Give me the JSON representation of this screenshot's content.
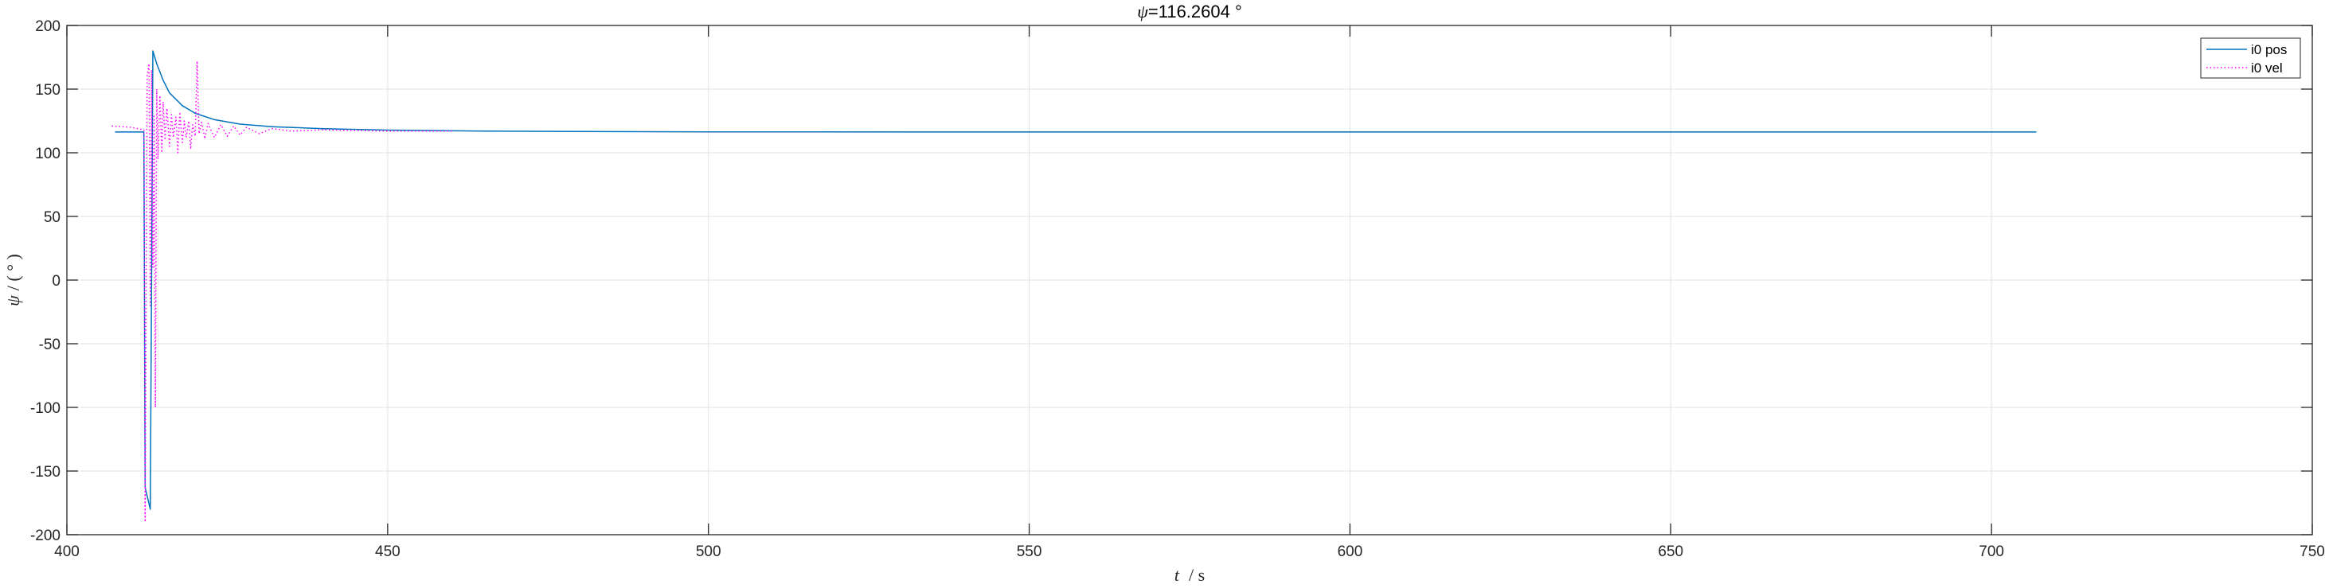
{
  "chart_data": {
    "type": "line",
    "title_symbol": "ψ",
    "title_rest": "=116.2604 °",
    "xlabel_var": "t",
    "xlabel_unit": "/ s",
    "ylabel_var": "ψ",
    "ylabel_unit": "/ ( ° )",
    "xlim": [
      400,
      750
    ],
    "ylim": [
      -200,
      200
    ],
    "xticks": [
      400,
      450,
      500,
      550,
      600,
      650,
      700,
      750
    ],
    "yticks": [
      200,
      150,
      100,
      50,
      0,
      -50,
      -100,
      -150,
      -200
    ],
    "grid": true,
    "legend_position": "top-right",
    "series": [
      {
        "name": "i0 pos",
        "color": "#0072BD",
        "style": "solid",
        "x": [
          407.5,
          412.0,
          412.2,
          413.0,
          413.4,
          414.0,
          415.0,
          416.0,
          418.0,
          420.0,
          423.0,
          427.0,
          432.0,
          440.0,
          450.0,
          465.0,
          480.0,
          500.0,
          550.0,
          600.0,
          650.0,
          700.0,
          707.0
        ],
        "y": [
          116.3,
          116.3,
          -163.0,
          -180.0,
          180.0,
          170.0,
          157.0,
          147.0,
          137.0,
          131.0,
          126.0,
          122.5,
          120.5,
          118.9,
          117.8,
          117.0,
          116.7,
          116.4,
          116.3,
          116.3,
          116.3,
          116.3,
          116.3
        ]
      },
      {
        "name": "i0 vel",
        "color": "#FF00FF",
        "style": "dotted",
        "x": [
          407.0,
          410.0,
          412.0,
          412.2,
          412.5,
          412.8,
          413.0,
          413.2,
          413.4,
          413.6,
          413.8,
          414.0,
          414.2,
          414.5,
          414.8,
          415.0,
          415.3,
          415.6,
          416.0,
          416.3,
          416.6,
          417.0,
          417.3,
          417.6,
          418.0,
          418.3,
          418.6,
          419.0,
          419.3,
          419.6,
          420.0,
          420.3,
          420.6,
          421.0,
          421.5,
          422.0,
          423.0,
          424.0,
          425.0,
          426.0,
          427.0,
          428.0,
          430.0,
          432.0,
          435.0,
          440.0,
          450.0,
          460.0
        ],
        "y": [
          121.0,
          120.0,
          118.0,
          -190.0,
          160.0,
          170.0,
          -20.0,
          165.0,
          10.0,
          130.0,
          -100.0,
          150.0,
          95.0,
          145.0,
          100.0,
          140.0,
          110.0,
          135.0,
          105.0,
          130.0,
          112.0,
          128.0,
          100.0,
          132.0,
          108.0,
          125.0,
          112.0,
          125.0,
          103.0,
          122.0,
          113.0,
          172.0,
          115.0,
          124.0,
          111.0,
          123.0,
          112.0,
          122.0,
          113.0,
          121.0,
          114.0,
          120.0,
          115.0,
          119.0,
          117.0,
          118.0,
          117.0,
          117.0
        ]
      }
    ]
  }
}
